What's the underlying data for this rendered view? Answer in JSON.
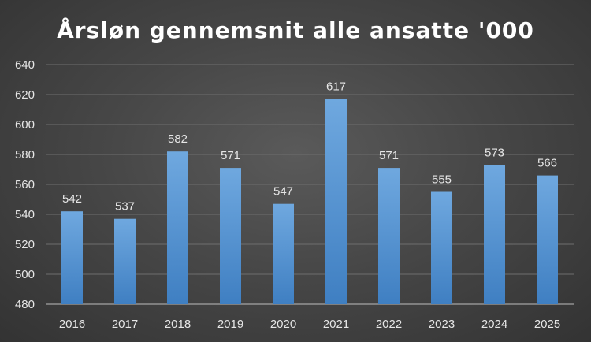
{
  "chart_data": {
    "type": "bar",
    "title": "Årsløn gennemsnit alle ansatte '000",
    "categories": [
      "2016",
      "2017",
      "2018",
      "2019",
      "2020",
      "2021",
      "2022",
      "2023",
      "2024",
      "2025"
    ],
    "values": [
      542,
      537,
      582,
      571,
      547,
      617,
      571,
      555,
      573,
      566
    ],
    "data_labels": [
      "542",
      "537",
      "582",
      "571",
      "547",
      "617",
      "571",
      "555",
      "573",
      "566"
    ],
    "ylim": [
      480,
      640
    ],
    "yticks": [
      "480",
      "500",
      "520",
      "540",
      "560",
      "580",
      "600",
      "620",
      "640"
    ],
    "grid": true,
    "legend": "none",
    "bar_color": "#5b9bd5"
  }
}
